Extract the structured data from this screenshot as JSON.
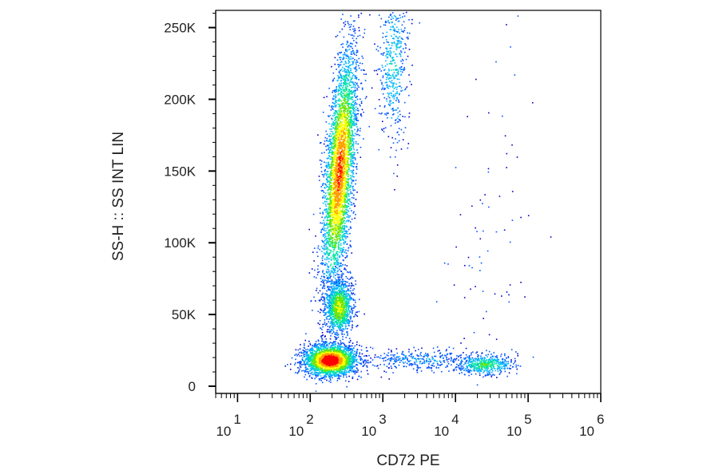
{
  "chart_data": {
    "type": "scatter",
    "subtype": "flow-cytometry-density-dot-plot",
    "xlabel": "CD72 PE",
    "ylabel": "SS-H :: SS INT LIN",
    "x_scale": "log",
    "y_scale": "linear",
    "xlim": [
      5,
      1000000
    ],
    "ylim": [
      -5000,
      262000
    ],
    "grid": false,
    "legend": "none",
    "x_ticks": [
      {
        "value": 10,
        "base": "10",
        "exp": "1"
      },
      {
        "value": 100,
        "base": "10",
        "exp": "2"
      },
      {
        "value": 1000,
        "base": "10",
        "exp": "3"
      },
      {
        "value": 10000,
        "base": "10",
        "exp": "4"
      },
      {
        "value": 100000,
        "base": "10",
        "exp": "5"
      },
      {
        "value": 1000000,
        "base": "10",
        "exp": "6"
      }
    ],
    "y_ticks": [
      {
        "value": 0,
        "label": "0"
      },
      {
        "value": 50000,
        "label": "50K"
      },
      {
        "value": 100000,
        "label": "100K"
      },
      {
        "value": 150000,
        "label": "150K"
      },
      {
        "value": 200000,
        "label": "200K"
      },
      {
        "value": 250000,
        "label": "250K"
      }
    ],
    "density_colors": [
      "#0000c8",
      "#0055ff",
      "#00b7ff",
      "#00e5a0",
      "#6ee600",
      "#ffff00",
      "#ff9a00",
      "#ff0000"
    ],
    "populations": [
      {
        "x_center": 190,
        "x_log_sd": 0.18,
        "y_center": 18000,
        "y_sd": 5500,
        "count": 2600,
        "peak_level": 7
      },
      {
        "x_center": 250,
        "x_log_sd": 0.1,
        "y_center": 55000,
        "y_sd": 10000,
        "count": 1200,
        "peak_level": 4
      },
      {
        "x_center": 255,
        "x_log_sd": 0.1,
        "y_center": 150000,
        "y_sd": 42000,
        "count": 3800,
        "peak_level": 6,
        "y_tilt_log_per_unit": 1.5e-06
      },
      {
        "x_center": 1400,
        "x_log_sd": 0.1,
        "y_center": 225000,
        "y_sd": 28000,
        "count": 500,
        "peak_level": 2
      },
      {
        "x_center": 3000,
        "x_log_sd": 0.45,
        "y_center": 18000,
        "y_sd": 4000,
        "count": 350,
        "peak_level": 1
      },
      {
        "x_center": 25000,
        "x_log_sd": 0.2,
        "y_center": 15000,
        "y_sd": 3500,
        "count": 500,
        "peak_level": 3
      },
      {
        "x_center": 30000,
        "x_log_sd": 0.35,
        "y_center": 120000,
        "y_sd": 55000,
        "count": 70,
        "peak_level": 0
      }
    ]
  }
}
